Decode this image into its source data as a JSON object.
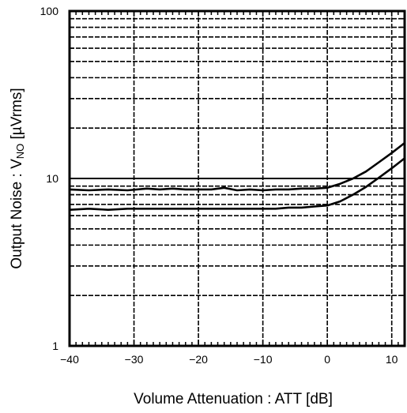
{
  "chart_data": {
    "type": "line",
    "title": "",
    "xlabel": "Volume Attenuation : ATT [dB]",
    "ylabel": {
      "prefix": "Output Noise : V",
      "subscript": "NO",
      "suffix": " [µVrms]"
    },
    "xlim": [
      -40,
      12
    ],
    "ylim": [
      1,
      100
    ],
    "yscale": "log",
    "grid": true,
    "x_ticks": [
      -40,
      -30,
      -20,
      -10,
      0,
      10
    ],
    "x_tick_labels": [
      "−40",
      "−30",
      "−20",
      "−10",
      "0",
      "10"
    ],
    "y_ticks": [
      1,
      10,
      100
    ],
    "y_tick_labels": [
      "1",
      "10",
      "100"
    ],
    "series": [
      {
        "x": [
          -40,
          -37,
          -34,
          -31,
          -28,
          -26,
          -24,
          -22,
          -20,
          -18,
          -16,
          -14,
          -12,
          -10,
          -8,
          -6,
          -4,
          -2,
          0,
          2,
          4,
          6,
          8,
          10,
          12
        ],
        "values": [
          8.6,
          8.5,
          8.6,
          8.5,
          8.7,
          8.6,
          8.7,
          8.6,
          8.6,
          8.6,
          8.8,
          8.5,
          8.6,
          8.5,
          8.6,
          8.6,
          8.7,
          8.7,
          8.8,
          9.3,
          10.0,
          11.0,
          12.5,
          14.2,
          16.3
        ]
      },
      {
        "x": [
          -40,
          -37,
          -34,
          -31,
          -28,
          -25,
          -22,
          -19,
          -16,
          -13,
          -10,
          -8,
          -6,
          -4,
          -2,
          0,
          2,
          4,
          6,
          8,
          10,
          12
        ],
        "values": [
          6.5,
          6.6,
          6.5,
          6.6,
          6.6,
          6.6,
          6.6,
          6.6,
          6.6,
          6.6,
          6.6,
          6.6,
          6.7,
          6.7,
          6.8,
          6.9,
          7.3,
          8.0,
          8.9,
          10.1,
          11.5,
          13.2
        ]
      }
    ]
  }
}
